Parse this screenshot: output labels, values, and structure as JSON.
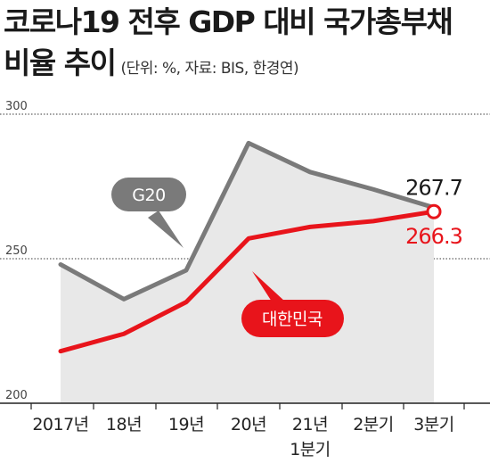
{
  "chart_data": {
    "type": "line",
    "title_line1": "코로나19 전후 GDP 대비 국가총부채",
    "title_line2": "비율 추이",
    "note": "(단위: %, 자료: BIS, 한경연)",
    "categories": [
      [
        "2017년"
      ],
      [
        "18년"
      ],
      [
        "19년"
      ],
      [
        "20년"
      ],
      [
        "21년",
        "1분기"
      ],
      [
        "2분기"
      ],
      [
        "3분기"
      ]
    ],
    "yticks": [
      "300",
      "250",
      "200"
    ],
    "ylim": [
      200,
      300
    ],
    "series": [
      {
        "name": "G20",
        "values": [
          248,
          236,
          246,
          290,
          280,
          274,
          267.7
        ],
        "color": "#7a7a7a",
        "end_label": "267.7",
        "end_label_color": "#1a1a1a"
      },
      {
        "name": "대한민국",
        "values": [
          218,
          224,
          235,
          257,
          261,
          263,
          266.3
        ],
        "color": "#e8141b",
        "end_label": "266.3",
        "end_label_color": "#e8141b"
      }
    ],
    "area_fill": "#e8e8e8"
  }
}
